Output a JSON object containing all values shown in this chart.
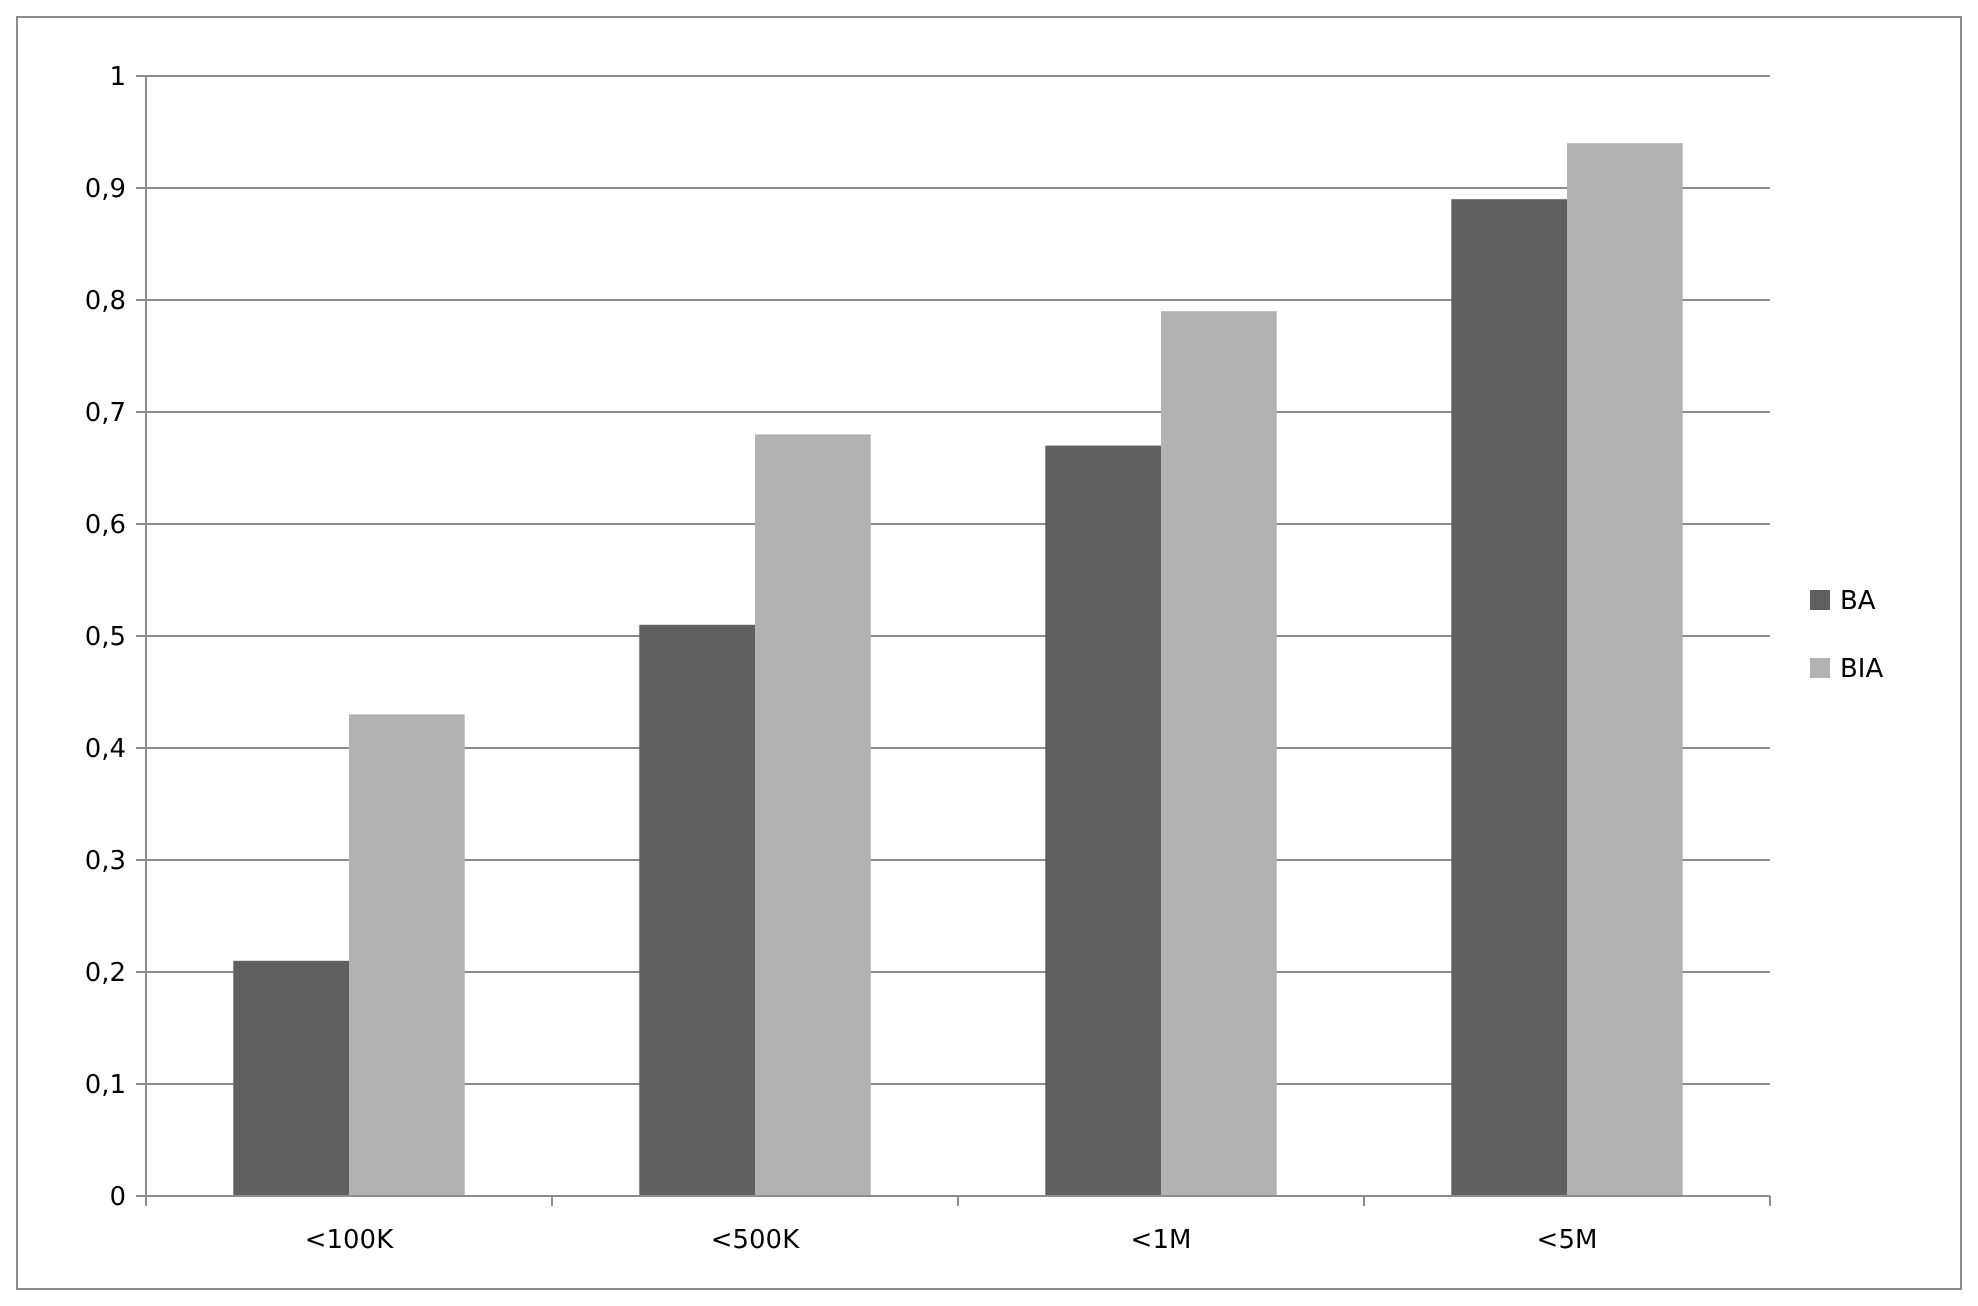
{
  "chart_data": {
    "type": "bar",
    "categories": [
      "<100K",
      "<500K",
      "<1M",
      "<5M"
    ],
    "series": [
      {
        "name": "BA",
        "color": "#606060",
        "values": [
          0.21,
          0.51,
          0.67,
          0.89
        ]
      },
      {
        "name": "BIA",
        "color": "#b2b2b2",
        "values": [
          0.43,
          0.68,
          0.79,
          0.94
        ]
      }
    ],
    "ylim": [
      0,
      1
    ],
    "yticks": [
      0,
      {
        "value": 0.1,
        "label": "0,1"
      },
      {
        "value": 0.2,
        "label": "0,2"
      },
      {
        "value": 0.3,
        "label": "0,3"
      },
      {
        "value": 0.4,
        "label": "0,4"
      },
      {
        "value": 0.5,
        "label": "0,5"
      },
      {
        "value": 0.6,
        "label": "0,6"
      },
      {
        "value": 0.7,
        "label": "0,7"
      },
      {
        "value": 0.8,
        "label": "0,8"
      },
      {
        "value": 0.9,
        "label": "0,9"
      },
      1
    ],
    "grid": "y",
    "legend": "right"
  }
}
